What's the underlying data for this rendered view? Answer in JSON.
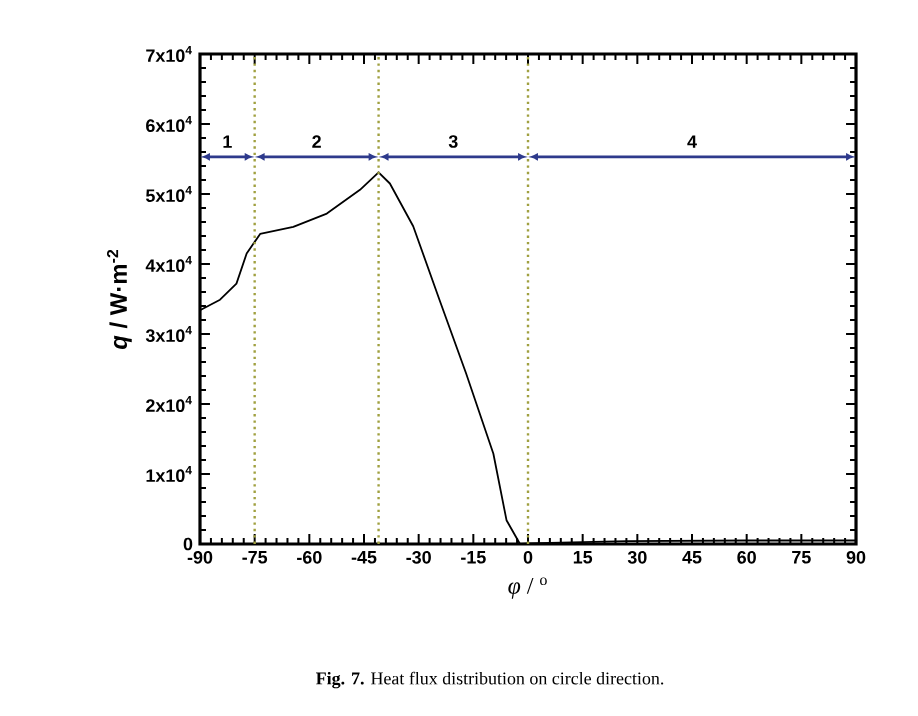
{
  "chart_data": {
    "type": "line",
    "xlabel": "*φ* / $^{o}$",
    "ylabel": "*q* / W·m$^{-2}$",
    "x": [
      -90,
      -84.5,
      -80,
      -77.2,
      -73.5,
      -64.4,
      -55.2,
      -46.1,
      -41,
      -37.9,
      -31.5,
      -24.3,
      -17,
      -9.5,
      -5.9,
      -2.2,
      0,
      27,
      60,
      90
    ],
    "series": [
      {
        "color": "#000000",
        "values": [
          33400,
          34900,
          37200,
          41500,
          44300,
          45300,
          47200,
          50600,
          53100,
          51500,
          45400,
          34900,
          24400,
          12900,
          3400,
          0,
          100,
          400,
          500,
          500
        ]
      }
    ],
    "xlim": [
      -90,
      90
    ],
    "ylim": [
      0,
      70000
    ],
    "xticks": [
      -90,
      -75,
      -60,
      -45,
      -30,
      -15,
      0,
      15,
      30,
      45,
      60,
      75,
      90
    ],
    "yticks": [
      0,
      {
        "value": 10000,
        "label": "1x10$^{4}$"
      },
      {
        "value": 20000,
        "label": "2x10$^{4}$"
      },
      {
        "value": 30000,
        "label": "3x10$^{4}$"
      },
      {
        "value": 40000,
        "label": "4x10$^{4}$"
      },
      {
        "value": 50000,
        "label": "5x10$^{4}$"
      },
      {
        "value": 60000,
        "label": "6x10$^{4}$"
      },
      {
        "value": 70000,
        "label": "7x10$^{4}$"
      }
    ],
    "grid": false,
    "line_style": "solid",
    "ref_lines": [
      {
        "axis": "x",
        "value": -75,
        "color": "#a0a040",
        "line_style": "dotted"
      },
      {
        "axis": "x",
        "value": -41,
        "color": "#a0a040",
        "line_style": "dotted"
      },
      {
        "axis": "x",
        "value": 0,
        "color": "#a0a040",
        "line_style": "dotted"
      }
    ],
    "annotations": [
      "1",
      "2",
      "3",
      "4",
      "**Fig. 7.** Heat flux distribution on circle direction."
    ]
  }
}
